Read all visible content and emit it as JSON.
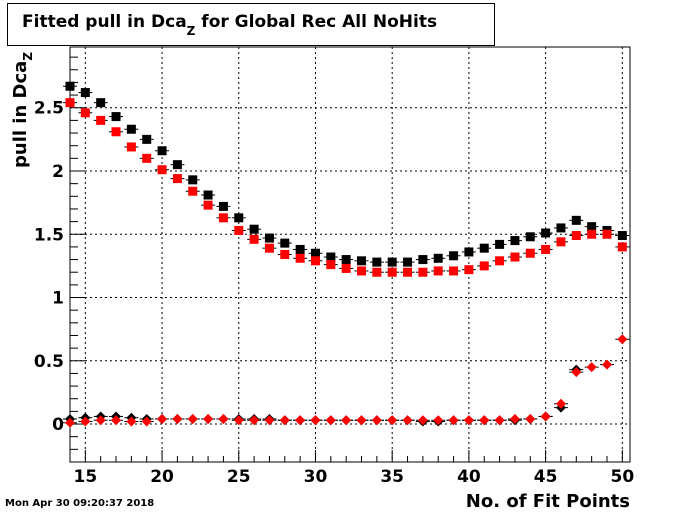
{
  "title": {
    "main": "Fitted pull in Dca",
    "sub": "Z",
    "rest": " for Global Rec All NoHits"
  },
  "ylabel": {
    "main": "pull in Dca",
    "sub": "Z"
  },
  "xlabel": "No. of Fit Points",
  "timestamp": "Mon Apr 30 09:20:37 2018",
  "chart_data": {
    "type": "scatter",
    "title": "Fitted pull in Dca_Z for Global Rec All NoHits",
    "xlabel": "No. of Fit Points",
    "ylabel": "pull in Dca_Z",
    "xlim": [
      14,
      50.5
    ],
    "ylim": [
      -0.3,
      2.98
    ],
    "x_ticks": [
      15,
      20,
      25,
      30,
      35,
      40,
      45,
      50
    ],
    "y_ticks": [
      0,
      0.5,
      1,
      1.5,
      2,
      2.5
    ],
    "y_tick_labels": [
      "0",
      "0.5",
      "1",
      "1.5",
      "2",
      "2.5"
    ],
    "colors": {
      "black": "#000000",
      "red": "#ff0000"
    },
    "series": [
      {
        "marker": "square",
        "color": "#000000",
        "x": [
          14,
          15,
          16,
          17,
          18,
          19,
          20,
          21,
          22,
          23,
          24,
          25,
          26,
          27,
          28,
          29,
          30,
          31,
          32,
          33,
          34,
          35,
          36,
          37,
          38,
          39,
          40,
          41,
          42,
          43,
          44,
          45,
          46,
          47,
          48,
          49,
          50
        ],
        "y": [
          2.67,
          2.62,
          2.54,
          2.43,
          2.33,
          2.25,
          2.16,
          2.05,
          1.93,
          1.81,
          1.72,
          1.63,
          1.54,
          1.47,
          1.43,
          1.38,
          1.35,
          1.32,
          1.3,
          1.29,
          1.28,
          1.28,
          1.28,
          1.3,
          1.31,
          1.33,
          1.36,
          1.39,
          1.42,
          1.45,
          1.48,
          1.51,
          1.55,
          1.61,
          1.56,
          1.53,
          1.49
        ]
      },
      {
        "marker": "square",
        "color": "#ff0000",
        "x": [
          14,
          15,
          16,
          17,
          18,
          19,
          20,
          21,
          22,
          23,
          24,
          25,
          26,
          27,
          28,
          29,
          30,
          31,
          32,
          33,
          34,
          35,
          36,
          37,
          38,
          39,
          40,
          41,
          42,
          43,
          44,
          45,
          46,
          47,
          48,
          49,
          50
        ],
        "y": [
          2.54,
          2.46,
          2.4,
          2.31,
          2.19,
          2.1,
          2.01,
          1.94,
          1.84,
          1.73,
          1.63,
          1.53,
          1.46,
          1.39,
          1.34,
          1.31,
          1.29,
          1.26,
          1.23,
          1.21,
          1.2,
          1.2,
          1.2,
          1.2,
          1.21,
          1.21,
          1.22,
          1.25,
          1.29,
          1.32,
          1.35,
          1.38,
          1.44,
          1.49,
          1.5,
          1.5,
          1.4
        ]
      },
      {
        "marker": "diamond",
        "color": "#000000",
        "x": [
          14,
          15,
          16,
          17,
          18,
          19,
          20,
          21,
          22,
          23,
          24,
          25,
          26,
          27,
          28,
          29,
          30,
          31,
          32,
          33,
          34,
          35,
          36,
          37,
          38,
          39,
          40,
          41,
          42,
          43,
          44,
          45,
          46,
          47
        ],
        "y": [
          0.04,
          0.05,
          0.06,
          0.06,
          0.05,
          0.04,
          0.04,
          0.04,
          0.04,
          0.04,
          0.04,
          0.04,
          0.04,
          0.04,
          0.03,
          0.03,
          0.03,
          0.03,
          0.03,
          0.03,
          0.03,
          0.03,
          0.03,
          0.02,
          0.02,
          0.03,
          0.03,
          0.03,
          0.03,
          0.03,
          0.04,
          0.06,
          0.13,
          0.43
        ]
      },
      {
        "marker": "diamond",
        "color": "#ff0000",
        "x": [
          14,
          15,
          16,
          17,
          18,
          19,
          20,
          21,
          22,
          23,
          24,
          25,
          26,
          27,
          28,
          29,
          30,
          31,
          32,
          33,
          34,
          35,
          36,
          37,
          38,
          39,
          40,
          41,
          42,
          43,
          44,
          45,
          46,
          47,
          48,
          49,
          50
        ],
        "y": [
          0.01,
          0.02,
          0.03,
          0.03,
          0.02,
          0.02,
          0.04,
          0.04,
          0.04,
          0.04,
          0.04,
          0.03,
          0.03,
          0.03,
          0.03,
          0.03,
          0.03,
          0.03,
          0.03,
          0.03,
          0.03,
          0.03,
          0.03,
          0.03,
          0.03,
          0.03,
          0.03,
          0.03,
          0.03,
          0.04,
          0.04,
          0.06,
          0.16,
          0.41,
          0.45,
          0.47,
          0.67
        ]
      }
    ]
  }
}
